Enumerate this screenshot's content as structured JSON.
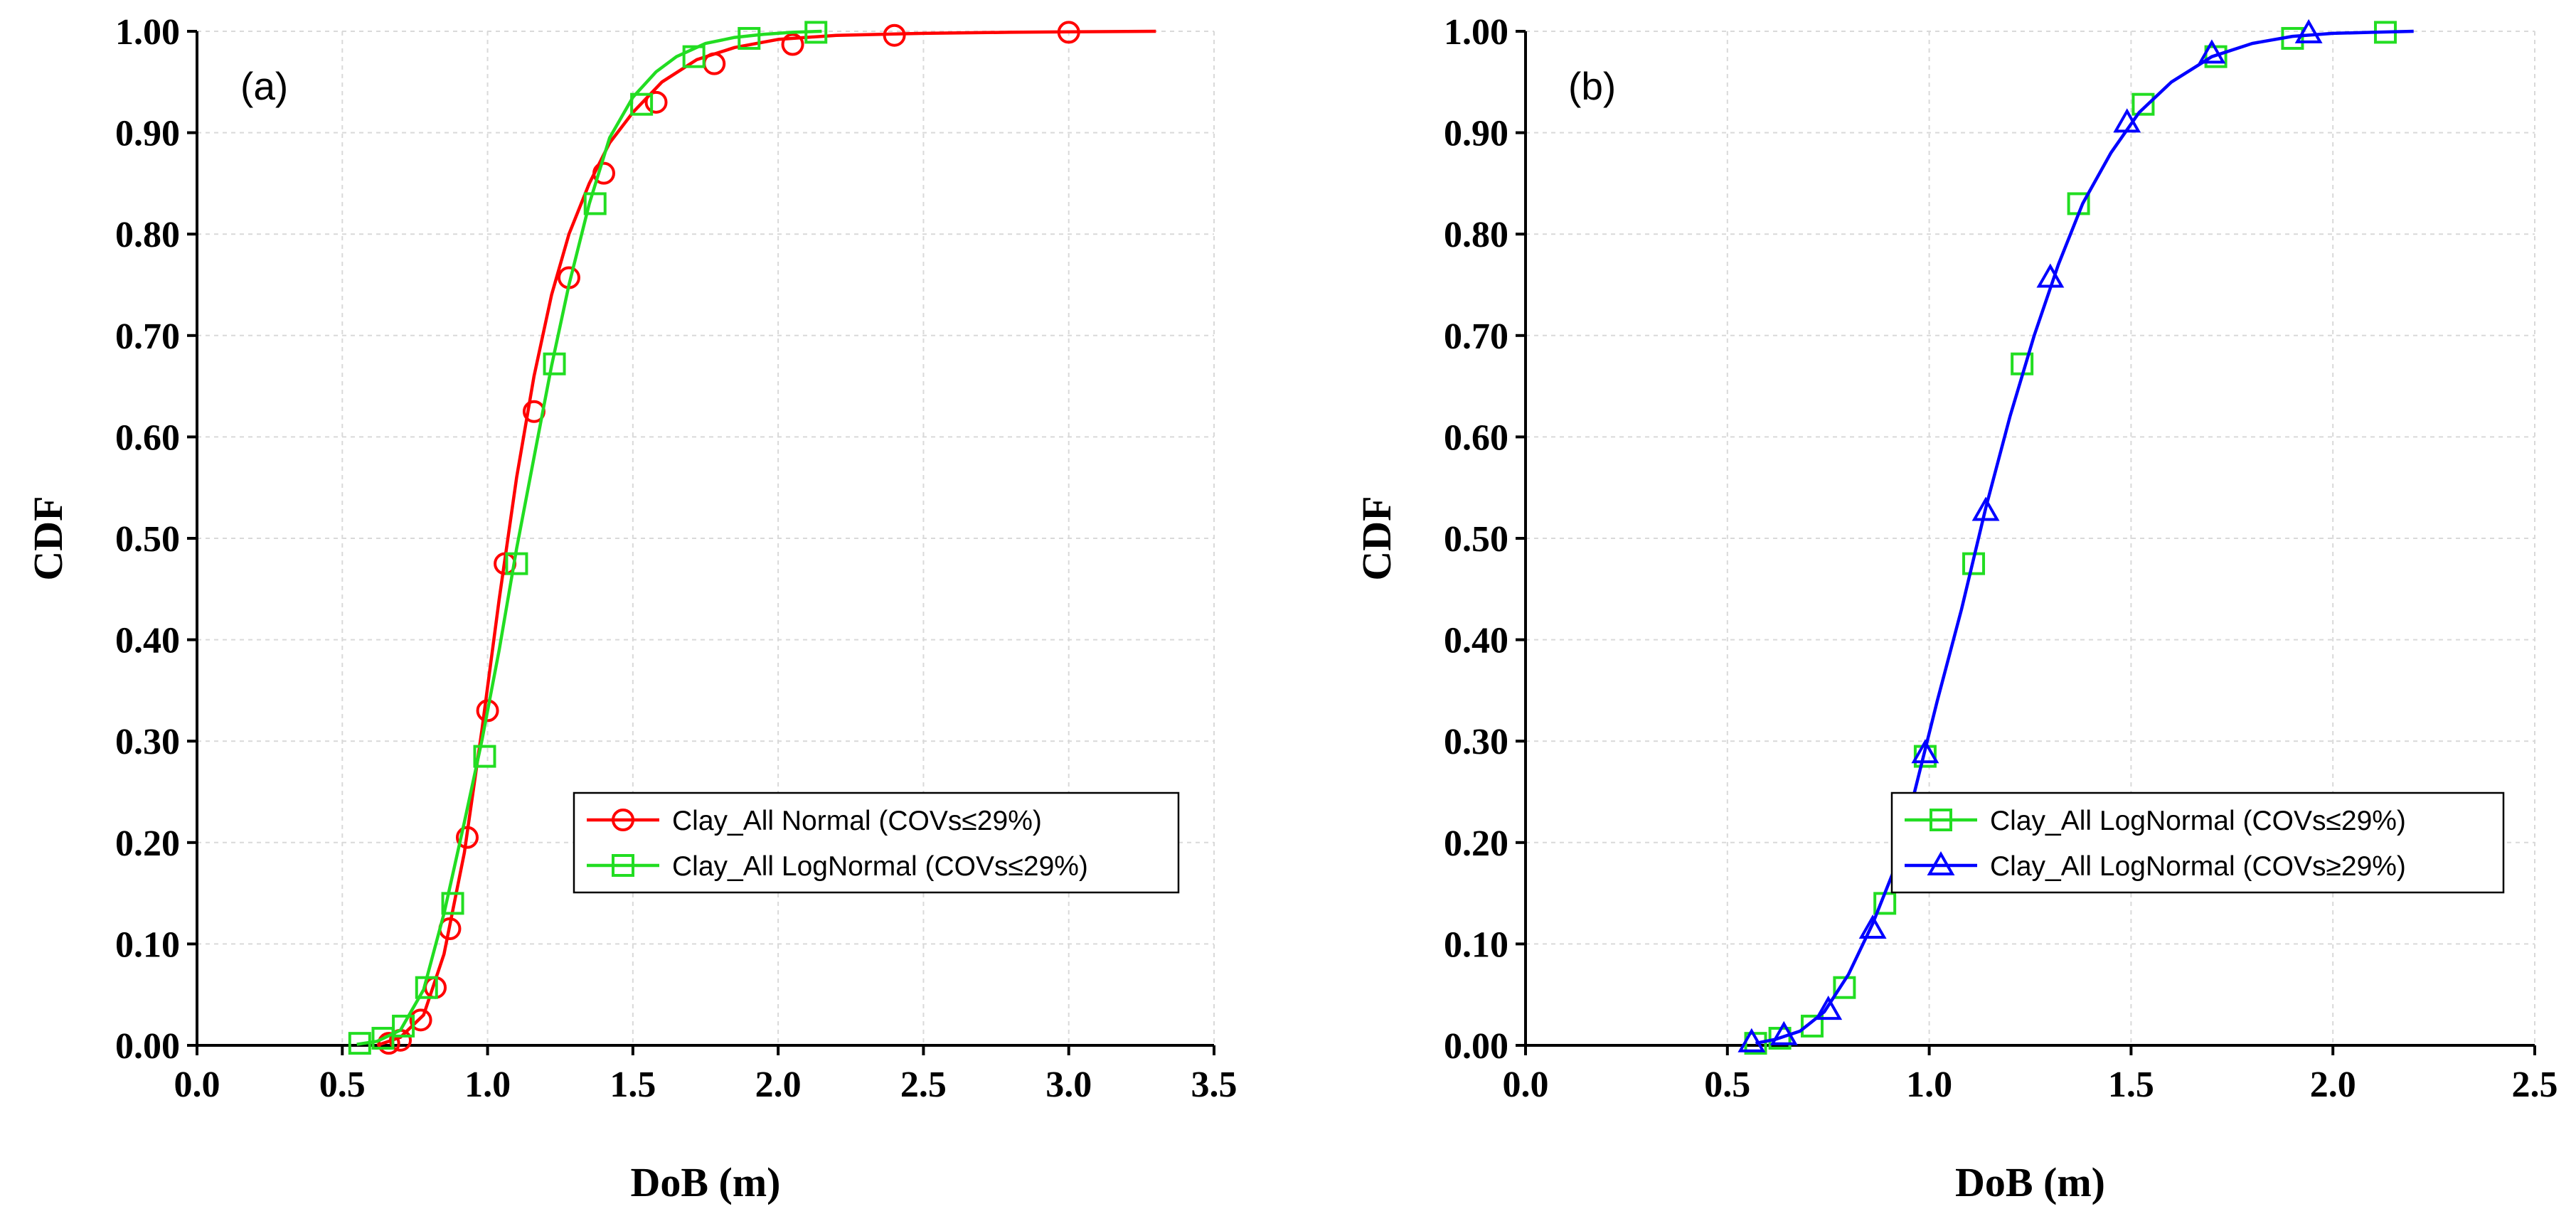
{
  "chart_data": [
    {
      "type": "line",
      "panel_label": "(a)",
      "xlabel": "DoB (m)",
      "ylabel": "CDF",
      "xlim": [
        0.0,
        3.5
      ],
      "ylim": [
        0.0,
        1.0
      ],
      "xticks": [
        "0.0",
        "0.5",
        "1.0",
        "1.5",
        "2.0",
        "2.5",
        "3.0",
        "3.5"
      ],
      "yticks": [
        "0.00",
        "0.10",
        "0.20",
        "0.30",
        "0.40",
        "0.50",
        "0.60",
        "0.70",
        "0.80",
        "0.90",
        "1.00"
      ],
      "grid": true,
      "legend_position": "lower-right",
      "series": [
        {
          "name": "Clay_All Normal (COVs≤29%)",
          "color": "#ff0000",
          "marker": "circle",
          "curve": {
            "x": [
              0.62,
              0.7,
              0.78,
              0.85,
              0.92,
              0.98,
              1.04,
              1.1,
              1.16,
              1.22,
              1.28,
              1.35,
              1.42,
              1.5,
              1.6,
              1.72,
              1.85,
              2.0,
              2.2,
              2.5,
              2.8,
              3.0,
              3.3
            ],
            "y": [
              0.0,
              0.008,
              0.03,
              0.09,
              0.19,
              0.31,
              0.44,
              0.56,
              0.66,
              0.74,
              0.8,
              0.85,
              0.89,
              0.92,
              0.95,
              0.972,
              0.984,
              0.992,
              0.996,
              0.998,
              0.999,
              0.9995,
              1.0
            ]
          },
          "points": {
            "x": [
              0.66,
              0.7,
              0.77,
              0.82,
              0.87,
              0.93,
              1.0,
              1.06,
              1.16,
              1.28,
              1.4,
              1.58,
              1.78,
              2.05,
              2.4,
              3.0
            ],
            "y": [
              0.002,
              0.005,
              0.025,
              0.057,
              0.115,
              0.205,
              0.33,
              0.475,
              0.625,
              0.757,
              0.86,
              0.93,
              0.968,
              0.987,
              0.996,
              0.999
            ]
          }
        },
        {
          "name": "Clay_All LogNormal (COVs≤29%)",
          "color": "#22dd22",
          "marker": "square",
          "curve": {
            "x": [
              0.55,
              0.62,
              0.7,
              0.78,
              0.85,
              0.92,
              0.98,
              1.04,
              1.1,
              1.16,
              1.22,
              1.28,
              1.35,
              1.42,
              1.5,
              1.58,
              1.65,
              1.75,
              1.85,
              1.95,
              2.05,
              2.15
            ],
            "y": [
              0.001,
              0.004,
              0.015,
              0.055,
              0.13,
              0.22,
              0.3,
              0.39,
              0.49,
              0.58,
              0.67,
              0.75,
              0.83,
              0.895,
              0.935,
              0.96,
              0.975,
              0.988,
              0.994,
              0.997,
              0.999,
              1.0
            ]
          },
          "points": {
            "x": [
              0.56,
              0.64,
              0.71,
              0.79,
              0.88,
              0.99,
              1.1,
              1.23,
              1.37,
              1.53,
              1.71,
              1.9,
              2.13
            ],
            "y": [
              0.002,
              0.007,
              0.019,
              0.057,
              0.14,
              0.285,
              0.475,
              0.672,
              0.83,
              0.928,
              0.975,
              0.993,
              0.999
            ]
          }
        }
      ]
    },
    {
      "type": "line",
      "panel_label": "(b)",
      "xlabel": "DoB (m)",
      "ylabel": "CDF",
      "xlim": [
        0.0,
        2.5
      ],
      "ylim": [
        0.0,
        1.0
      ],
      "xticks": [
        "0.0",
        "0.5",
        "1.0",
        "1.5",
        "2.0",
        "2.5"
      ],
      "yticks": [
        "0.00",
        "0.10",
        "0.20",
        "0.30",
        "0.40",
        "0.50",
        "0.60",
        "0.70",
        "0.80",
        "0.90",
        "1.00"
      ],
      "grid": true,
      "legend_position": "lower-right",
      "series": [
        {
          "name": "Clay_All LogNormal (COVs≤29%)",
          "color": "#22dd22",
          "marker": "square",
          "curve": null,
          "points": {
            "x": [
              0.57,
              0.63,
              0.71,
              0.79,
              0.89,
              0.99,
              1.11,
              1.23,
              1.37,
              1.53,
              1.71,
              1.9,
              2.13
            ],
            "y": [
              0.002,
              0.007,
              0.019,
              0.057,
              0.14,
              0.285,
              0.475,
              0.672,
              0.83,
              0.928,
              0.975,
              0.993,
              0.999
            ]
          }
        },
        {
          "name": "Clay_All LogNormal (COVs≥29%)",
          "color": "#0000ff",
          "marker": "triangle",
          "curve": {
            "x": [
              0.57,
              0.62,
              0.68,
              0.74,
              0.8,
              0.86,
              0.92,
              0.97,
              1.02,
              1.08,
              1.14,
              1.2,
              1.26,
              1.32,
              1.38,
              1.45,
              1.52,
              1.6,
              1.7,
              1.8,
              1.9,
              2.0,
              2.1,
              2.2
            ],
            "y": [
              0.002,
              0.006,
              0.014,
              0.033,
              0.07,
              0.12,
              0.18,
              0.26,
              0.34,
              0.43,
              0.53,
              0.62,
              0.7,
              0.77,
              0.83,
              0.88,
              0.92,
              0.95,
              0.975,
              0.988,
              0.995,
              0.998,
              0.999,
              1.0
            ]
          },
          "points": {
            "x": [
              0.56,
              0.64,
              0.75,
              0.86,
              0.99,
              1.14,
              1.3,
              1.49,
              1.7,
              1.94
            ],
            "y": [
              0.003,
              0.01,
              0.035,
              0.115,
              0.288,
              0.527,
              0.757,
              0.91,
              0.978,
              0.998
            ]
          }
        }
      ]
    }
  ]
}
